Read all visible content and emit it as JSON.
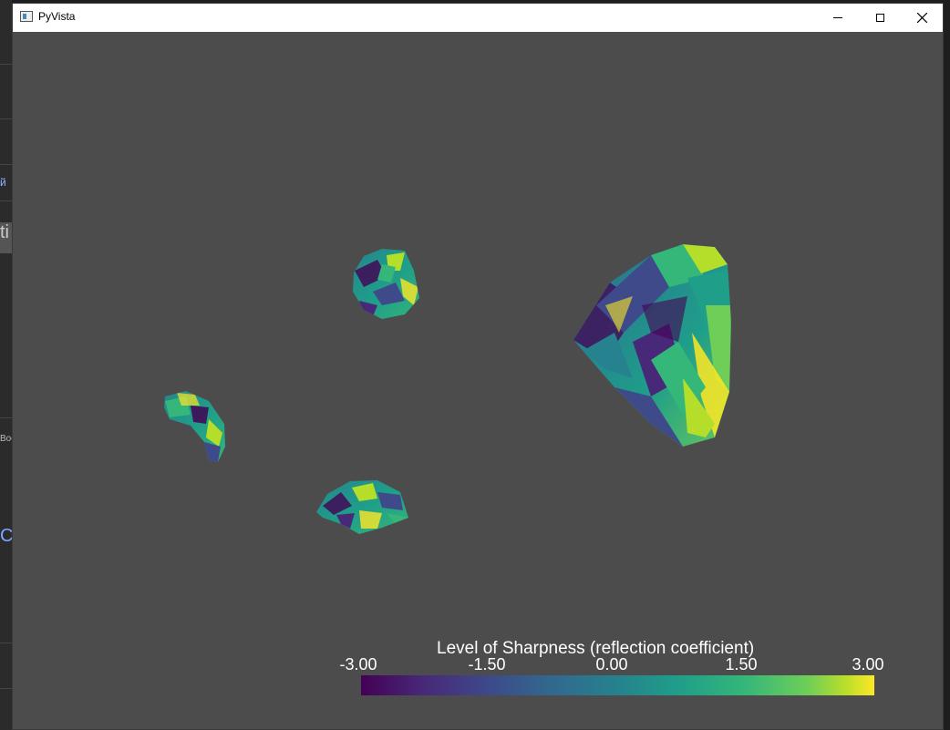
{
  "window": {
    "title": "PyVista",
    "controls": {
      "minimize": "minimize-icon",
      "maximize": "maximize-icon",
      "close": "close-icon"
    }
  },
  "background_app": {
    "fragments": [
      "й",
      "ti",
      "Boo",
      "C"
    ]
  },
  "scalar_bar": {
    "title": "Level of Sharpness (reflection coefficient)",
    "ticks": [
      "-3.00",
      "-1.50",
      "0.00",
      "1.50",
      "3.00"
    ],
    "min": -3.0,
    "max": 3.0,
    "colormap": "viridis",
    "colors": [
      "#440154",
      "#3e4a89",
      "#26828e",
      "#35b779",
      "#fde725"
    ]
  },
  "scene": {
    "background_color": "#4c4c4c",
    "objects": [
      "mesh-large-right",
      "mesh-small-top",
      "mesh-small-left",
      "mesh-small-bottom"
    ]
  }
}
